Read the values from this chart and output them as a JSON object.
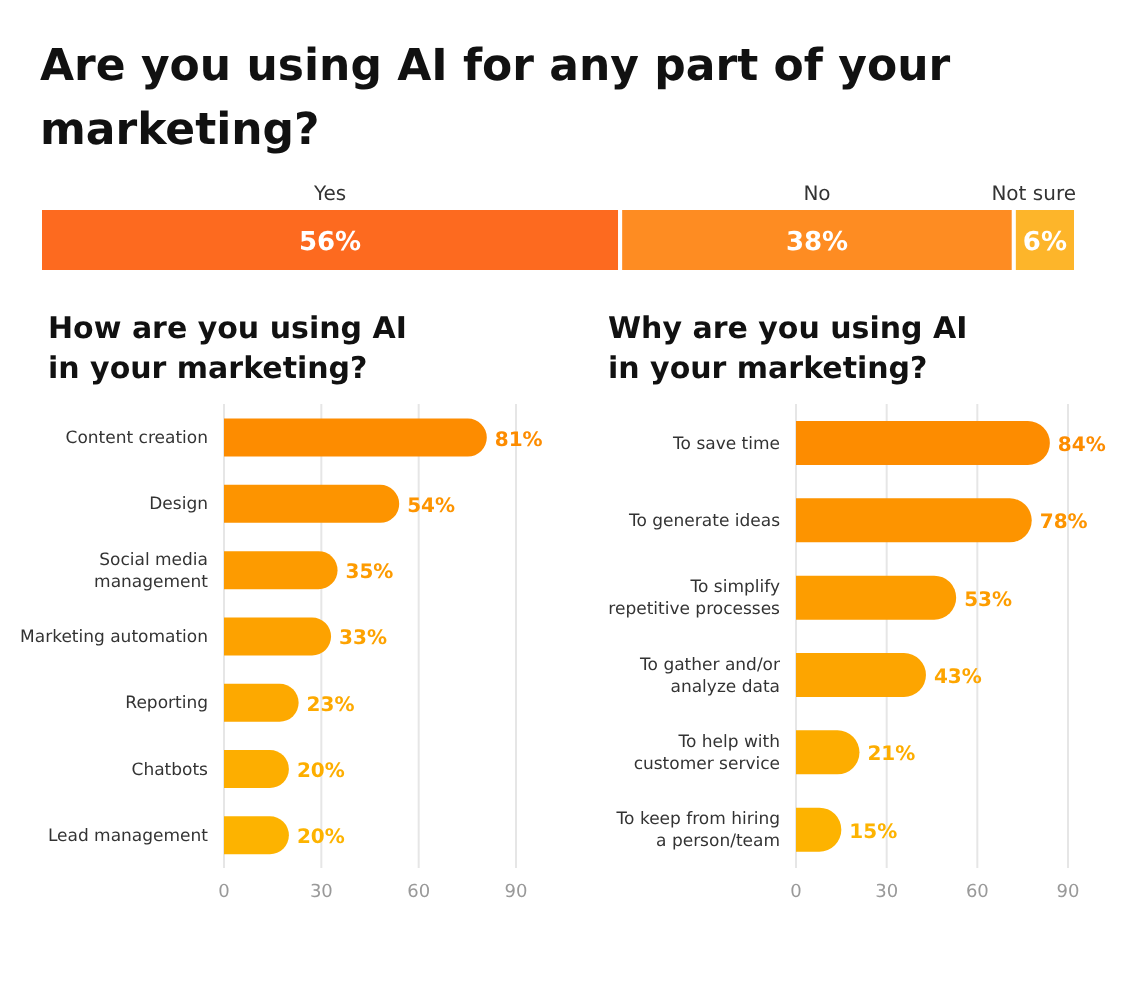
{
  "chart_data": [
    {
      "type": "bar",
      "title": "Are you using AI for any part of your marketing?",
      "orientation": "horizontal",
      "stacked": true,
      "categories": [
        null
      ],
      "series": [
        {
          "name": "Yes",
          "color": "#fd6a1f",
          "values": [
            56
          ],
          "value_labels": [
            "56%"
          ]
        },
        {
          "name": "No",
          "color": "#fe8c22",
          "values": [
            38
          ],
          "value_labels": [
            "38%"
          ]
        },
        {
          "name": "Not sure",
          "color": "#fdb52a",
          "values": [
            6
          ],
          "value_labels": [
            "6%"
          ]
        }
      ]
    },
    {
      "type": "bar",
      "title": "How are you using AI in your marketing?",
      "orientation": "horizontal",
      "categories": [
        "Content creation",
        "Design",
        "Social media management",
        "Marketing automation",
        "Reporting",
        "Chatbots",
        "Lead management"
      ],
      "values": [
        81,
        54,
        35,
        33,
        23,
        20,
        20
      ],
      "value_labels": [
        "81%",
        "54%",
        "35%",
        "33%",
        "23%",
        "20%",
        "20%"
      ],
      "colors": [
        "#fd8c00",
        "#fd9400",
        "#fd9b00",
        "#fda200",
        "#fda900",
        "#fdae00",
        "#fdb300"
      ],
      "xlim": [
        0,
        90
      ],
      "xticks": [
        0,
        30,
        60,
        90
      ],
      "grid": "x"
    },
    {
      "type": "bar",
      "title": "Why are you using AI in your marketing?",
      "orientation": "horizontal",
      "categories": [
        "To save time",
        "To generate ideas",
        "To simplify repetitive processes",
        "To gather and/or analyze data",
        "To help with customer service",
        "To keep from hiring a person/team"
      ],
      "values": [
        84,
        78,
        53,
        43,
        21,
        15
      ],
      "value_labels": [
        "84%",
        "78%",
        "53%",
        "43%",
        "21%",
        "15%"
      ],
      "colors": [
        "#fd8c00",
        "#fd9400",
        "#fd9d00",
        "#fda500",
        "#fdad00",
        "#fdb300"
      ],
      "xlim": [
        0,
        90
      ],
      "xticks": [
        0,
        30,
        60,
        90
      ],
      "grid": "x"
    }
  ]
}
